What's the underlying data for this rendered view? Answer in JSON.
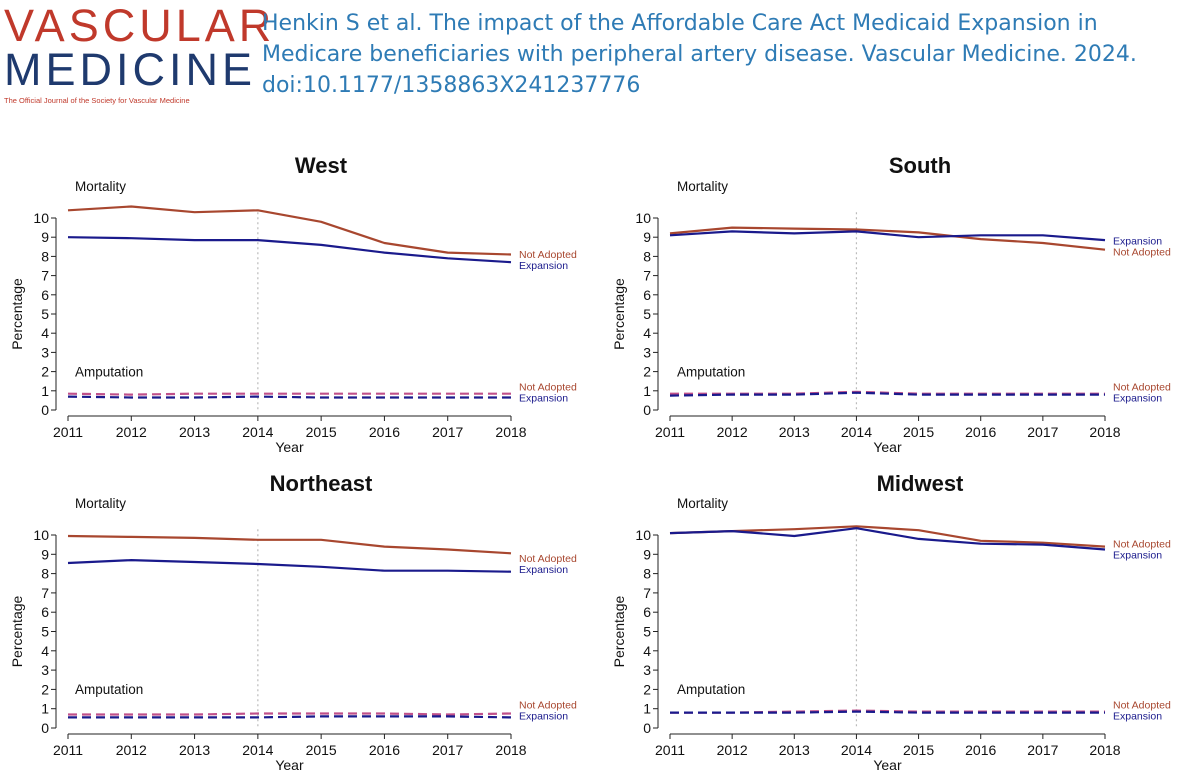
{
  "header": {
    "logo_line1": "VASCULAR",
    "logo_line2": "MEDICINE",
    "logo_tagline": "The Official Journal of the Society for Vascular Medicine",
    "citation": "Henkin S et al. The impact of the Affordable Care Act Medicaid Expansion in Medicare beneficiaries with peripheral artery disease. Vascular Medicine. 2024. doi:10.1177/1358863X241237776"
  },
  "colors": {
    "expansion": "#1a1a8c",
    "not_adopted": "#a8472f",
    "dashed_pink": "#c0508a",
    "vline": "#bbbbbb"
  },
  "chart_data": [
    {
      "type": "line",
      "title": "West",
      "xlabel": "Year",
      "ylabel": "Percentage",
      "x": [
        2011,
        2012,
        2013,
        2014,
        2015,
        2016,
        2017,
        2018
      ],
      "ylim": [
        0,
        10
      ],
      "yticks": [
        0,
        1,
        2,
        3,
        4,
        5,
        6,
        7,
        8,
        9,
        10
      ],
      "reference_line_x": 2014,
      "section_labels": {
        "mortality": "Mortality",
        "amputation": "Amputation"
      },
      "series": [
        {
          "name": "Not Adopted",
          "group": "Mortality",
          "style": "solid",
          "values": [
            10.4,
            10.6,
            10.3,
            10.4,
            9.8,
            8.7,
            8.2,
            8.1
          ]
        },
        {
          "name": "Expansion",
          "group": "Mortality",
          "style": "solid",
          "values": [
            9.0,
            8.95,
            8.85,
            8.85,
            8.6,
            8.2,
            7.9,
            7.7
          ]
        },
        {
          "name": "Not Adopted",
          "group": "Amputation",
          "style": "dashed",
          "values": [
            0.85,
            0.8,
            0.85,
            0.85,
            0.85,
            0.85,
            0.85,
            0.85
          ]
        },
        {
          "name": "Expansion",
          "group": "Amputation",
          "style": "dashed",
          "values": [
            0.7,
            0.65,
            0.65,
            0.7,
            0.65,
            0.65,
            0.65,
            0.65
          ]
        }
      ],
      "legend": {
        "mortality": [
          "Not Adopted",
          "Expansion"
        ],
        "amputation": [
          "Not Adopted",
          "Expansion"
        ]
      }
    },
    {
      "type": "line",
      "title": "South",
      "xlabel": "Year",
      "ylabel": "Percentage",
      "x": [
        2011,
        2012,
        2013,
        2014,
        2015,
        2016,
        2017,
        2018
      ],
      "ylim": [
        0,
        10
      ],
      "yticks": [
        0,
        1,
        2,
        3,
        4,
        5,
        6,
        7,
        8,
        9,
        10
      ],
      "reference_line_x": 2014,
      "section_labels": {
        "mortality": "Mortality",
        "amputation": "Amputation"
      },
      "series": [
        {
          "name": "Not Adopted",
          "group": "Mortality",
          "style": "solid",
          "values": [
            9.2,
            9.5,
            9.45,
            9.4,
            9.25,
            8.9,
            8.7,
            8.35
          ]
        },
        {
          "name": "Expansion",
          "group": "Mortality",
          "style": "solid",
          "values": [
            9.1,
            9.3,
            9.2,
            9.3,
            9.0,
            9.1,
            9.1,
            8.85
          ]
        },
        {
          "name": "Not Adopted",
          "group": "Amputation",
          "style": "dashed",
          "values": [
            0.85,
            0.85,
            0.85,
            0.95,
            0.85,
            0.85,
            0.85,
            0.85
          ]
        },
        {
          "name": "Expansion",
          "group": "Amputation",
          "style": "dashed",
          "values": [
            0.75,
            0.8,
            0.8,
            0.9,
            0.8,
            0.8,
            0.8,
            0.8
          ]
        }
      ],
      "legend": {
        "mortality": [
          "Expansion",
          "Not Adopted"
        ],
        "amputation": [
          "Not Adopted",
          "Expansion"
        ]
      }
    },
    {
      "type": "line",
      "title": "Northeast",
      "xlabel": "Year",
      "ylabel": "Percentage",
      "x": [
        2011,
        2012,
        2013,
        2014,
        2015,
        2016,
        2017,
        2018
      ],
      "ylim": [
        0,
        10
      ],
      "yticks": [
        0,
        1,
        2,
        3,
        4,
        5,
        6,
        7,
        8,
        9,
        10
      ],
      "reference_line_x": 2014,
      "section_labels": {
        "mortality": "Mortality",
        "amputation": "Amputation"
      },
      "series": [
        {
          "name": "Not Adopted",
          "group": "Mortality",
          "style": "solid",
          "values": [
            9.95,
            9.9,
            9.85,
            9.75,
            9.75,
            9.4,
            9.25,
            9.05
          ]
        },
        {
          "name": "Expansion",
          "group": "Mortality",
          "style": "solid",
          "values": [
            8.55,
            8.7,
            8.6,
            8.5,
            8.35,
            8.15,
            8.15,
            8.1
          ]
        },
        {
          "name": "Not Adopted",
          "group": "Amputation",
          "style": "dashed",
          "values": [
            0.7,
            0.7,
            0.7,
            0.75,
            0.75,
            0.75,
            0.7,
            0.75
          ]
        },
        {
          "name": "Expansion",
          "group": "Amputation",
          "style": "dashed",
          "values": [
            0.55,
            0.55,
            0.55,
            0.55,
            0.6,
            0.6,
            0.6,
            0.55
          ]
        }
      ],
      "legend": {
        "mortality": [
          "Not Adopted",
          "Expansion"
        ],
        "amputation": [
          "Not Adopted",
          "Expansion"
        ]
      }
    },
    {
      "type": "line",
      "title": "Midwest",
      "xlabel": "Year",
      "ylabel": "Percentage",
      "x": [
        2011,
        2012,
        2013,
        2014,
        2015,
        2016,
        2017,
        2018
      ],
      "ylim": [
        0,
        10
      ],
      "yticks": [
        0,
        1,
        2,
        3,
        4,
        5,
        6,
        7,
        8,
        9,
        10
      ],
      "reference_line_x": 2014,
      "section_labels": {
        "mortality": "Mortality",
        "amputation": "Amputation"
      },
      "series": [
        {
          "name": "Not Adopted",
          "group": "Mortality",
          "style": "solid",
          "values": [
            10.1,
            10.2,
            10.3,
            10.45,
            10.25,
            9.7,
            9.6,
            9.4
          ]
        },
        {
          "name": "Expansion",
          "group": "Mortality",
          "style": "solid",
          "values": [
            10.1,
            10.2,
            9.95,
            10.35,
            9.8,
            9.55,
            9.5,
            9.25
          ]
        },
        {
          "name": "Not Adopted",
          "group": "Amputation",
          "style": "dashed",
          "values": [
            0.8,
            0.8,
            0.85,
            0.9,
            0.85,
            0.85,
            0.85,
            0.85
          ]
        },
        {
          "name": "Expansion",
          "group": "Amputation",
          "style": "dashed",
          "values": [
            0.8,
            0.8,
            0.8,
            0.85,
            0.8,
            0.8,
            0.8,
            0.8
          ]
        }
      ],
      "legend": {
        "mortality": [
          "Not Adopted",
          "Expansion"
        ],
        "amputation": [
          "Not Adopted",
          "Expansion"
        ]
      }
    }
  ]
}
